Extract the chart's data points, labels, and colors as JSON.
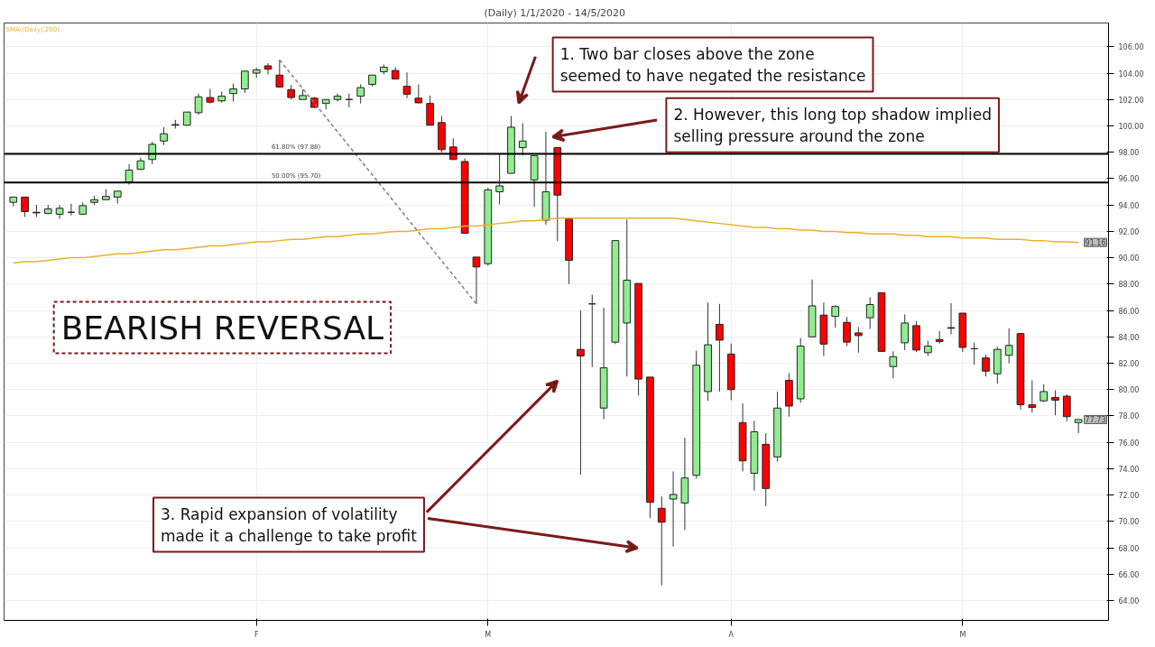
{
  "chart_data": {
    "type": "candlestick",
    "title": "(Daily)  1/1/2020 - 14/5/2020",
    "categories": [
      null,
      null,
      null,
      null,
      null,
      null,
      null,
      null,
      null,
      null,
      null,
      null,
      null,
      null,
      null,
      null,
      null,
      null,
      null,
      null,
      null,
      "F",
      null,
      null,
      null,
      null,
      null,
      null,
      null,
      null,
      null,
      null,
      null,
      null,
      null,
      null,
      null,
      null,
      null,
      null,
      null,
      "M",
      null,
      null,
      null,
      null,
      null,
      null,
      null,
      null,
      null,
      null,
      null,
      null,
      null,
      null,
      null,
      null,
      null,
      null,
      null,
      null,
      "A",
      null,
      null,
      null,
      null,
      null,
      null,
      null,
      null,
      null,
      null,
      null,
      null,
      null,
      null,
      null,
      null,
      null,
      null,
      null,
      "M",
      null,
      null,
      null,
      null,
      null,
      null,
      null,
      null,
      null,
      null
    ],
    "ohlc": [
      [
        94.2,
        94.6,
        93.9,
        94.6
      ],
      [
        94.6,
        94.6,
        93.1,
        93.5
      ],
      [
        93.45,
        94.0,
        93.1,
        93.4
      ],
      [
        93.35,
        94.0,
        93.3,
        93.7
      ],
      [
        93.3,
        94.0,
        92.95,
        93.75
      ],
      [
        93.45,
        94.1,
        93.2,
        93.45
      ],
      [
        93.3,
        94.2,
        93.3,
        93.95
      ],
      [
        94.2,
        94.7,
        94.0,
        94.4
      ],
      [
        94.4,
        95.2,
        94.4,
        94.65
      ],
      [
        94.6,
        95.05,
        94.1,
        95.05
      ],
      [
        95.75,
        97.1,
        95.55,
        96.65
      ],
      [
        96.7,
        97.6,
        96.65,
        97.35
      ],
      [
        97.45,
        98.8,
        97.1,
        98.6
      ],
      [
        98.85,
        99.9,
        98.55,
        99.4
      ],
      [
        100.05,
        100.45,
        99.8,
        100.1
      ],
      [
        100.05,
        101.05,
        100.05,
        101.05
      ],
      [
        101.0,
        102.45,
        100.85,
        102.2
      ],
      [
        102.15,
        102.8,
        101.7,
        101.8
      ],
      [
        101.9,
        102.6,
        101.75,
        102.25
      ],
      [
        102.45,
        103.2,
        101.85,
        102.8
      ],
      [
        102.8,
        104.15,
        102.5,
        104.15
      ],
      [
        104.0,
        104.4,
        103.65,
        104.25
      ],
      [
        104.55,
        104.75,
        103.9,
        104.3
      ],
      [
        103.85,
        105.0,
        102.9,
        102.95
      ],
      [
        102.75,
        103.1,
        102.0,
        102.15
      ],
      [
        102.0,
        102.75,
        102.0,
        102.3
      ],
      [
        102.1,
        102.2,
        101.35,
        101.4
      ],
      [
        101.7,
        102.0,
        101.25,
        102.0
      ],
      [
        102.0,
        102.45,
        101.85,
        102.25
      ],
      [
        102.0,
        102.45,
        101.4,
        102.0
      ],
      [
        102.25,
        103.15,
        101.7,
        102.9
      ],
      [
        103.15,
        103.85,
        103.0,
        103.85
      ],
      [
        104.1,
        104.65,
        103.9,
        104.45
      ],
      [
        104.2,
        104.45,
        103.55,
        103.55
      ],
      [
        103.0,
        104.05,
        102.1,
        102.4
      ],
      [
        102.1,
        103.15,
        101.7,
        101.75
      ],
      [
        101.7,
        102.3,
        100.05,
        100.05
      ],
      [
        100.25,
        100.75,
        98.0,
        98.2
      ],
      [
        98.4,
        99.05,
        97.45,
        97.45
      ],
      [
        97.3,
        97.55,
        91.85,
        91.85
      ],
      [
        90.05,
        90.05,
        86.5,
        89.3
      ],
      [
        89.55,
        95.3,
        89.4,
        95.15
      ],
      [
        95.0,
        97.9,
        94.05,
        95.45
      ],
      [
        96.4,
        100.75,
        96.4,
        99.9
      ],
      [
        98.35,
        100.2,
        97.75,
        98.85
      ],
      [
        95.9,
        97.75,
        93.85,
        97.75
      ],
      [
        92.85,
        99.55,
        92.5,
        95.0
      ],
      [
        98.35,
        98.35,
        91.25,
        94.75
      ],
      [
        92.95,
        92.95,
        88.0,
        89.8
      ],
      [
        83.05,
        86.0,
        73.55,
        82.55
      ],
      [
        86.5,
        87.2,
        81.7,
        86.5
      ],
      [
        78.6,
        86.2,
        77.75,
        81.65
      ],
      [
        83.6,
        91.3,
        83.45,
        91.3
      ],
      [
        85.05,
        92.9,
        81.0,
        88.3
      ],
      [
        88.05,
        88.05,
        79.55,
        80.8
      ],
      [
        80.95,
        80.95,
        70.25,
        71.45
      ],
      [
        71.0,
        71.9,
        65.15,
        69.95
      ],
      [
        71.7,
        73.8,
        68.1,
        72.05
      ],
      [
        71.4,
        76.35,
        69.35,
        73.3
      ],
      [
        73.5,
        82.95,
        73.25,
        81.85
      ],
      [
        79.85,
        86.6,
        79.15,
        83.4
      ],
      [
        84.95,
        86.5,
        79.85,
        83.75
      ],
      [
        82.7,
        83.5,
        79.2,
        80.0
      ],
      [
        77.5,
        78.95,
        73.8,
        74.6
      ],
      [
        73.65,
        77.65,
        72.35,
        76.8
      ],
      [
        75.85,
        76.7,
        71.15,
        72.5
      ],
      [
        74.9,
        79.85,
        74.55,
        78.6
      ],
      [
        80.7,
        81.25,
        77.95,
        78.75
      ],
      [
        79.3,
        83.9,
        79.0,
        83.3
      ],
      [
        84.0,
        88.35,
        84.0,
        86.35
      ],
      [
        85.65,
        86.6,
        82.55,
        83.45
      ],
      [
        85.55,
        86.4,
        84.7,
        86.3
      ],
      [
        85.1,
        85.5,
        83.3,
        83.6
      ],
      [
        84.3,
        84.75,
        82.8,
        84.1
      ],
      [
        85.45,
        87.0,
        84.6,
        86.45
      ],
      [
        87.35,
        87.35,
        82.9,
        82.9
      ],
      [
        81.75,
        82.9,
        80.85,
        82.5
      ],
      [
        83.55,
        85.7,
        83.0,
        85.05
      ],
      [
        84.85,
        85.2,
        82.85,
        83.0
      ],
      [
        82.8,
        83.7,
        82.55,
        83.3
      ],
      [
        83.8,
        84.45,
        83.5,
        83.65
      ],
      [
        84.7,
        86.55,
        84.2,
        84.65
      ],
      [
        85.8,
        85.8,
        82.85,
        83.2
      ],
      [
        83.1,
        83.55,
        81.9,
        83.1
      ],
      [
        82.4,
        82.65,
        81.0,
        81.4
      ],
      [
        81.2,
        83.25,
        80.45,
        83.05
      ],
      [
        82.6,
        84.65,
        82.0,
        83.35
      ],
      [
        84.25,
        84.25,
        78.5,
        78.85
      ],
      [
        78.85,
        80.7,
        78.25,
        78.65
      ],
      [
        79.15,
        80.4,
        79.05,
        79.85
      ],
      [
        79.4,
        79.95,
        78.05,
        79.2
      ],
      [
        79.5,
        79.65,
        77.6,
        77.95
      ],
      [
        77.5,
        77.75,
        76.7,
        77.73
      ]
    ],
    "colors": [
      "#90ee90",
      "#ff0000",
      "#ff0000",
      "#90ee90",
      "#90ee90",
      "#222222",
      "#90ee90",
      "#90ee90",
      "#90ee90",
      "#90ee90",
      "#90ee90",
      "#90ee90",
      "#90ee90",
      "#90ee90",
      "#90ee90",
      "#90ee90",
      "#90ee90",
      "#ff0000",
      "#90ee90",
      "#90ee90",
      "#90ee90",
      "#90ee90",
      "#ff0000",
      "#ff0000",
      "#ff0000",
      "#90ee90",
      "#ff0000",
      "#90ee90",
      "#90ee90",
      "#222222",
      "#90ee90",
      "#90ee90",
      "#90ee90",
      "#ff0000",
      "#ff0000",
      "#ff0000",
      "#ff0000",
      "#ff0000",
      "#ff0000",
      "#ff0000",
      "#ff0000",
      "#90ee90",
      "#90ee90",
      "#90ee90",
      "#90ee90",
      "#90ee90",
      "#90ee90",
      "#ff0000",
      "#ff0000",
      "#ff0000",
      "#222222",
      "#90ee90",
      "#90ee90",
      "#90ee90",
      "#ff0000",
      "#ff0000",
      "#ff0000",
      "#90ee90",
      "#90ee90",
      "#90ee90",
      "#90ee90",
      "#ff0000",
      "#ff0000",
      "#ff0000",
      "#90ee90",
      "#ff0000",
      "#90ee90",
      "#ff0000",
      "#90ee90",
      "#90ee90",
      "#ff0000",
      "#90ee90",
      "#ff0000",
      "#ff0000",
      "#90ee90",
      "#ff0000",
      "#90ee90",
      "#90ee90",
      "#ff0000",
      "#90ee90",
      "#ff0000",
      "#ff0000",
      "#ff0000",
      "#222222",
      "#ff0000",
      "#90ee90",
      "#90ee90",
      "#ff0000",
      "#ff0000",
      "#90ee90",
      "#ff0000",
      "#ff0000",
      "#90ee90"
    ],
    "series": [
      {
        "name": "SMA((Daily),200)",
        "type": "line",
        "color": "#e8b030",
        "values": [
          89.6,
          89.7,
          89.7,
          89.8,
          89.9,
          90.0,
          90.0,
          90.1,
          90.2,
          90.3,
          90.3,
          90.4,
          90.5,
          90.6,
          90.6,
          90.7,
          90.8,
          90.9,
          90.9,
          91.0,
          91.1,
          91.2,
          91.2,
          91.3,
          91.4,
          91.4,
          91.5,
          91.6,
          91.6,
          91.7,
          91.8,
          91.8,
          91.9,
          92.0,
          92.0,
          92.1,
          92.2,
          92.2,
          92.3,
          92.4,
          92.4,
          92.5,
          92.6,
          92.7,
          92.8,
          92.8,
          92.9,
          93.0,
          93.0,
          93.0,
          93.0,
          93.0,
          93.0,
          93.0,
          93.0,
          93.0,
          93.0,
          93.0,
          92.9,
          92.8,
          92.7,
          92.6,
          92.5,
          92.4,
          92.3,
          92.3,
          92.2,
          92.2,
          92.1,
          92.1,
          92.0,
          92.0,
          91.9,
          91.9,
          91.8,
          91.8,
          91.8,
          91.7,
          91.7,
          91.6,
          91.6,
          91.6,
          91.5,
          91.5,
          91.5,
          91.4,
          91.4,
          91.4,
          91.3,
          91.3,
          91.2,
          91.2,
          91.16
        ]
      },
      {
        "type": "line",
        "color": "#808080",
        "line_style": "dashed",
        "values": [
          null,
          null,
          null,
          null,
          null,
          null,
          null,
          null,
          null,
          null,
          null,
          null,
          null,
          null,
          null,
          null,
          null,
          null,
          null,
          null,
          null,
          null,
          null,
          105.0,
          null,
          null,
          null,
          null,
          null,
          null,
          null,
          null,
          null,
          null,
          null,
          null,
          null,
          null,
          null,
          null,
          86.5,
          null,
          null,
          null,
          null,
          null,
          null,
          null,
          null,
          null,
          null,
          null,
          null,
          null,
          null,
          null,
          null,
          null,
          null,
          null,
          null,
          null,
          null,
          null,
          null,
          null,
          null,
          null,
          null,
          null,
          null,
          null,
          null,
          null,
          null,
          null,
          null,
          null,
          null,
          null,
          null,
          null,
          null,
          null,
          null,
          null,
          null,
          null,
          null,
          null,
          null,
          null,
          null
        ]
      }
    ],
    "ref_lines": [
      {
        "axis": "y",
        "value": 97.88,
        "label": "61.80% (97.88)",
        "color": "#000000"
      },
      {
        "axis": "y",
        "value": 95.7,
        "label": "50.00% (95.70)",
        "color": "#000000"
      }
    ],
    "ylim": [
      62.5,
      107.8
    ],
    "yticks": [
      {
        "value": 64,
        "label": "64.00"
      },
      {
        "value": 66,
        "label": "66.00"
      },
      {
        "value": 68,
        "label": "68.00"
      },
      {
        "value": 70,
        "label": "70.00"
      },
      {
        "value": 72,
        "label": "72.00"
      },
      {
        "value": 74,
        "label": "74.00"
      },
      {
        "value": 76,
        "label": "76.00"
      },
      {
        "value": 78,
        "label": "78.00"
      },
      {
        "value": 80,
        "label": "80.00"
      },
      {
        "value": 82,
        "label": "82.00"
      },
      {
        "value": 84,
        "label": "84.00"
      },
      {
        "value": 86,
        "label": "86.00"
      },
      {
        "value": 88,
        "label": "88.00"
      },
      {
        "value": 90,
        "label": "90.00"
      },
      {
        "value": 92,
        "label": "92.00"
      },
      {
        "value": 94,
        "label": "94.00"
      },
      {
        "value": 96,
        "label": "96.00"
      },
      {
        "value": 98,
        "label": "98.00"
      },
      {
        "value": 100,
        "label": "100.00"
      },
      {
        "value": 102,
        "label": "102.00"
      },
      {
        "value": 104,
        "label": "104.00"
      },
      {
        "value": 106,
        "label": "106.00"
      }
    ],
    "grid": true,
    "annotations": [
      "BEARISH REVERSAL",
      "1. Two bar closes above the zone\nseemed to have negated the resistance",
      "2. However, this long top shadow implied\nselling pressure around the zone",
      "3. Rapid expansion of volatility\nmade it a challenge to take profit",
      {
        "text": "91.16",
        "y": 91.16
      },
      {
        "text": "77.73",
        "y": 77.73
      }
    ]
  }
}
